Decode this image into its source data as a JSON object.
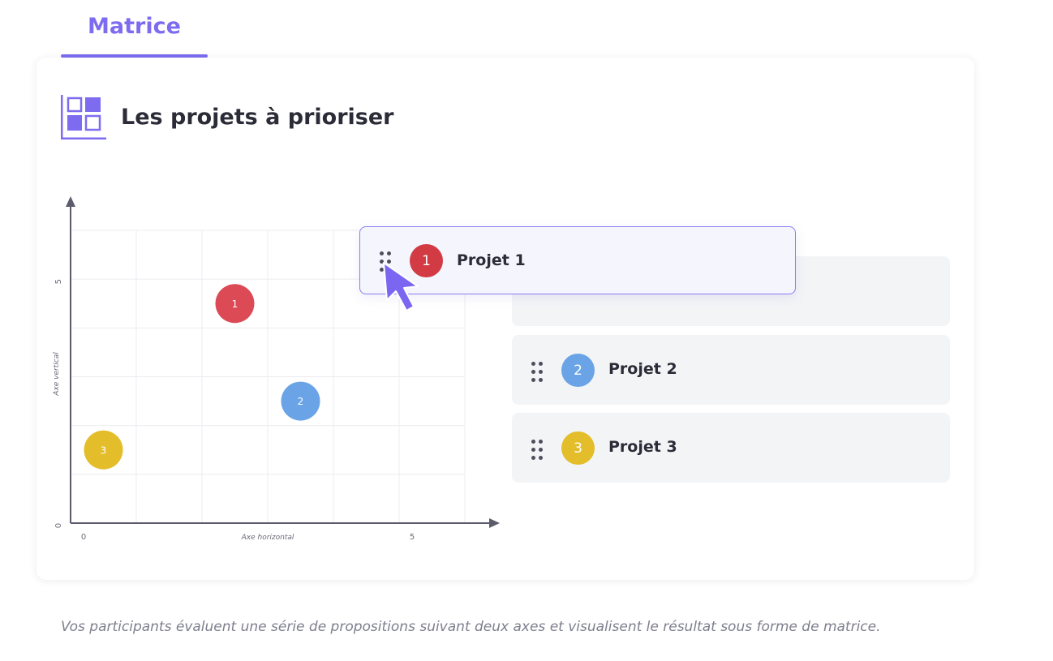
{
  "tab": {
    "label": "Matrice"
  },
  "card": {
    "title": "Les projets à prioriser",
    "icon": "matrix-icon"
  },
  "projects": [
    {
      "number": "1",
      "name": "Projet 1",
      "color": "#db4a55"
    },
    {
      "number": "2",
      "name": "Projet 2",
      "color": "#6aa3e6"
    },
    {
      "number": "3",
      "name": "Projet 3",
      "color": "#e3bd2a"
    }
  ],
  "chart_data": {
    "type": "scatter",
    "xlabel": "Axe horizontal",
    "ylabel": "Axe vertical",
    "xticks": [
      "0",
      "5"
    ],
    "yticks": [
      "0",
      "5"
    ],
    "xlim": [
      0,
      6
    ],
    "ylim": [
      0,
      6
    ],
    "grid": true,
    "points": [
      {
        "label": "1",
        "x": 2.5,
        "y": 4.5
      },
      {
        "label": "2",
        "x": 3.5,
        "y": 2.5
      },
      {
        "label": "3",
        "x": 0.5,
        "y": 1.5
      }
    ]
  },
  "drag_state": {
    "dragging": "Projet 1",
    "cursor_icon": "cursor-arrow-icon",
    "handle_icon": "drag-handle-icon"
  },
  "description": "Vos participants évaluent une série de propositions suivant deux axes et visualisent le résultat sous forme de matrice."
}
